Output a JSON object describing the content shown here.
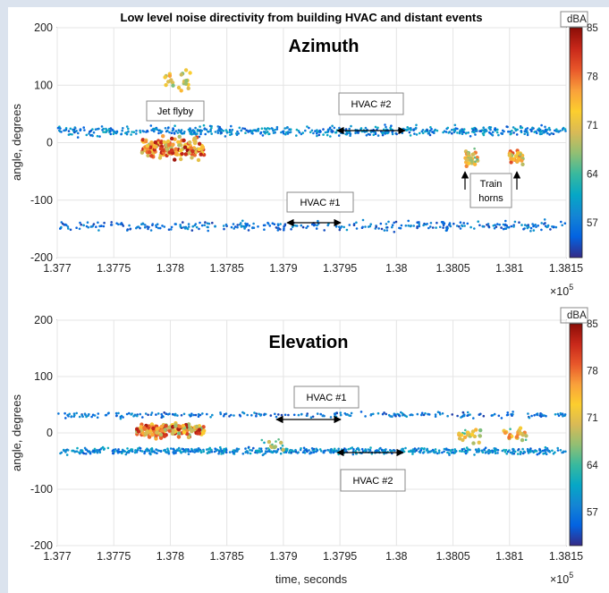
{
  "title": "Low level noise directivity from building HVAC and distant events",
  "colors": {
    "colormap": [
      "#352a87",
      "#0363e1",
      "#1485d4",
      "#06a7c6",
      "#38b99e",
      "#92bf73",
      "#d9ba56",
      "#fcce2e",
      "#f9a03b",
      "#e8572a",
      "#c8281a",
      "#8b0d07"
    ],
    "box_border": "#888888",
    "arrow": "#000000"
  },
  "chart_data": [
    {
      "type": "scatter",
      "subtitle": "Azimuth",
      "xlabel": "",
      "ylabel": "angle, degrees",
      "xlim": [
        137700,
        138150
      ],
      "ylim": [
        -200,
        200
      ],
      "x_ticks": [
        "1.377",
        "1.3775",
        "1.378",
        "1.3785",
        "1.379",
        "1.3795",
        "1.38",
        "1.3805",
        "1.381",
        "1.3815"
      ],
      "y_ticks": [
        "200",
        "100",
        "0",
        "-100",
        "-200"
      ],
      "x_multiplier": "×10",
      "x_multiplier_exp": "5",
      "colorbar": {
        "label": "dBA",
        "range": [
          52,
          85
        ],
        "ticks": [
          "85",
          "78",
          "71",
          "64",
          "57"
        ]
      },
      "clusters": [
        {
          "name": "HVAC #2 band",
          "x": [
            137700,
            138150
          ],
          "y_center": 20,
          "y_spread": 14,
          "n": 620,
          "dba": [
            54,
            62
          ]
        },
        {
          "name": "HVAC #1 band",
          "x": [
            137700,
            138150
          ],
          "y_center": -145,
          "y_spread": 14,
          "n": 340,
          "dba": [
            53,
            60
          ]
        },
        {
          "name": "Jet flyby",
          "x": [
            137775,
            137830
          ],
          "y_center": -10,
          "y_spread": 30,
          "n": 160,
          "dba": [
            68,
            84
          ]
        },
        {
          "name": "Jet flyby upper",
          "x": [
            137795,
            137818
          ],
          "y_center": 110,
          "y_spread": 35,
          "n": 25,
          "dba": [
            66,
            76
          ]
        },
        {
          "name": "Train horn 1",
          "x": [
            138060,
            138072
          ],
          "y_center": -25,
          "y_spread": 20,
          "n": 30,
          "dba": [
            65,
            78
          ]
        },
        {
          "name": "Train horn 2",
          "x": [
            138100,
            138112
          ],
          "y_center": -25,
          "y_spread": 20,
          "n": 30,
          "dba": [
            66,
            80
          ]
        }
      ],
      "annotations": {
        "jet": "Jet flyby",
        "hvac2": "HVAC #2",
        "hvac1": "HVAC #1",
        "train_line1": "Train",
        "train_line2": "horns"
      }
    },
    {
      "type": "scatter",
      "subtitle": "Elevation",
      "xlabel": "time, seconds",
      "ylabel": "angle, degrees",
      "xlim": [
        137700,
        138150
      ],
      "ylim": [
        -200,
        200
      ],
      "x_ticks": [
        "1.377",
        "1.3775",
        "1.378",
        "1.3785",
        "1.379",
        "1.3795",
        "1.38",
        "1.3805",
        "1.381",
        "1.3815"
      ],
      "y_ticks": [
        "200",
        "100",
        "0",
        "-100",
        "-200"
      ],
      "x_multiplier": "×10",
      "x_multiplier_exp": "5",
      "colorbar": {
        "label": "dBA",
        "range": [
          52,
          85
        ],
        "ticks": [
          "85",
          "78",
          "71",
          "64",
          "57"
        ]
      },
      "clusters": [
        {
          "name": "HVAC #1 band",
          "x": [
            137700,
            138150
          ],
          "y_center": 32,
          "y_spread": 8,
          "n": 260,
          "dba": [
            53,
            60
          ]
        },
        {
          "name": "HVAC #2 band",
          "x": [
            137700,
            138150
          ],
          "y_center": -32,
          "y_spread": 9,
          "n": 650,
          "dba": [
            54,
            62
          ]
        },
        {
          "name": "Jet flyby",
          "x": [
            137770,
            137830
          ],
          "y_center": 5,
          "y_spread": 22,
          "n": 170,
          "dba": [
            66,
            84
          ]
        },
        {
          "name": "Train horn 1",
          "x": [
            138055,
            138075
          ],
          "y_center": -5,
          "y_spread": 18,
          "n": 25,
          "dba": [
            63,
            76
          ]
        },
        {
          "name": "Train horn 2",
          "x": [
            138095,
            138115
          ],
          "y_center": -5,
          "y_spread": 18,
          "n": 25,
          "dba": [
            64,
            78
          ]
        },
        {
          "name": "mid events",
          "x": [
            137880,
            137900
          ],
          "y_center": -20,
          "y_spread": 25,
          "n": 14,
          "dba": [
            60,
            70
          ]
        }
      ],
      "annotations": {
        "hvac1": "HVAC #1",
        "hvac2": "HVAC #2"
      }
    }
  ]
}
